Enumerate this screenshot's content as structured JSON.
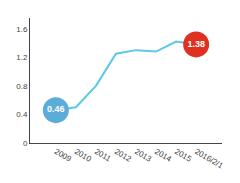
{
  "chart_data": {
    "type": "line",
    "categories": [
      "2009",
      "2010",
      "2011",
      "2012",
      "2013",
      "2014",
      "2015",
      "2016/2/1"
    ],
    "values": [
      0.46,
      0.5,
      0.8,
      1.25,
      1.3,
      1.28,
      1.42,
      1.38
    ],
    "color": "#5bc8e8",
    "ylim": [
      0,
      1.75
    ],
    "yticks": [
      0,
      0.4,
      0.8,
      1.2,
      1.6
    ],
    "grid": false,
    "annotations": [
      {
        "x": "2009",
        "y": 0.46,
        "text": "0.46",
        "color": "#5bacd8"
      },
      {
        "x": "2016/2/1",
        "y": 1.38,
        "text": "1.38",
        "color": "#e03020"
      }
    ]
  }
}
